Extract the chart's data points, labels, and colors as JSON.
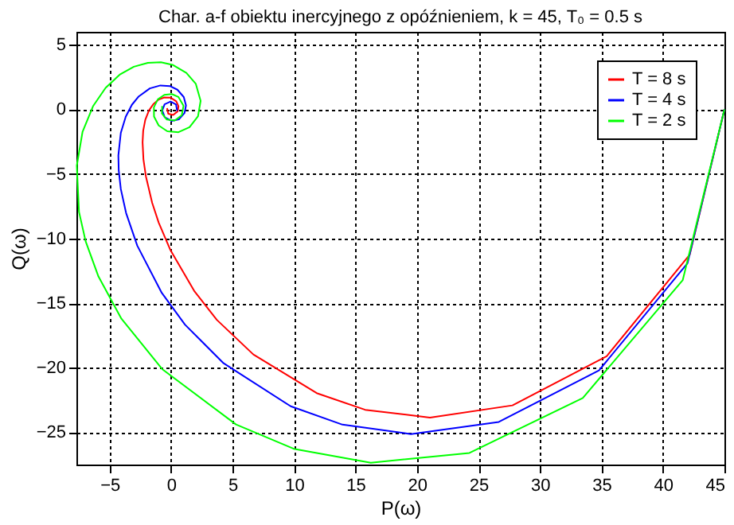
{
  "chart_data": {
    "type": "line",
    "title": "Char. a-f obiektu inercyjnego z opóźnieniem, k = 45, T₀ = 0.5 s",
    "xlabel": "P(ω)",
    "ylabel": "Q(ω)",
    "xlim": [
      -7.7,
      45
    ],
    "ylim": [
      -27.5,
      6
    ],
    "xticks": [
      -5,
      0,
      5,
      10,
      15,
      20,
      25,
      30,
      35,
      40,
      45
    ],
    "yticks": [
      -25,
      -20,
      -15,
      -10,
      -5,
      0,
      5
    ],
    "grid": true,
    "legend": "top right",
    "line_style": "solid",
    "marker": "none",
    "series": [
      {
        "name": "T = 8 s",
        "color": "#ff0000",
        "x": [
          45,
          42.18,
          35.42,
          27.76,
          21.05,
          15.78,
          11.84,
          6.69,
          3.72,
          1.91,
          -0.05,
          -1.01,
          -1.54,
          -2.05,
          -2.25,
          -2.32,
          -2.27,
          -2.1,
          -1.8,
          -1.45,
          -1.0,
          -0.55,
          -0.03,
          0.42,
          0.6,
          0.54,
          0.17,
          -0.23,
          -0.33
        ],
        "values": [
          0,
          -11.25,
          -19.12,
          -22.92,
          -23.86,
          -23.26,
          -21.97,
          -18.98,
          -16.3,
          -14.1,
          -10.91,
          -8.77,
          -7.24,
          -5.19,
          -3.87,
          -2.56,
          -1.66,
          -0.81,
          -0.09,
          0.4,
          0.76,
          0.92,
          0.9,
          0.62,
          0.23,
          -0.15,
          -0.44,
          -0.34,
          0.09
        ]
      },
      {
        "name": "T = 4 s",
        "color": "#0000ff",
        "x": [
          45,
          42.0,
          34.8,
          26.65,
          19.5,
          13.94,
          9.73,
          4.27,
          1.13,
          -0.76,
          -2.75,
          -3.66,
          -4.09,
          -4.26,
          -4.29,
          -4.09,
          -3.69,
          -3.19,
          -2.63,
          -1.73,
          -0.87,
          -0.1,
          0.51,
          1.03,
          1.21,
          1.09,
          0.63,
          0.05,
          -0.52,
          -0.72,
          -0.53,
          -0.04,
          0.4,
          0.49
        ],
        "values": [
          0,
          -11.91,
          -20.21,
          -24.2,
          -25.14,
          -24.41,
          -22.99,
          -19.66,
          -16.67,
          -14.21,
          -10.56,
          -8.03,
          -6.17,
          -4.72,
          -3.57,
          -1.82,
          -0.57,
          0.35,
          1.0,
          1.62,
          1.85,
          1.8,
          1.52,
          0.95,
          0.3,
          -0.29,
          -0.78,
          -0.9,
          -0.61,
          -0.09,
          0.39,
          0.6,
          0.38,
          -0.12
        ]
      },
      {
        "name": "T = 2 s",
        "color": "#00ff00",
        "x": [
          45,
          41.61,
          33.48,
          24.26,
          16.24,
          9.97,
          5.28,
          -0.73,
          -4.04,
          -5.91,
          -6.95,
          -7.49,
          -7.67,
          -7.2,
          -6.35,
          -5.33,
          -4.19,
          -3.03,
          -1.89,
          -0.83,
          0.11,
          1.24,
          2.01,
          2.4,
          2.19,
          1.5,
          0.6,
          -0.31,
          -1.01,
          -1.39,
          -1.4,
          -1.08,
          -0.55,
          0.06,
          0.59,
          1.01,
          0.87,
          0.3,
          -0.35,
          -0.75,
          -0.73
        ],
        "values": [
          0,
          -13.22,
          -22.35,
          -26.6,
          -27.36,
          -26.28,
          -24.4,
          -20.11,
          -16.21,
          -12.94,
          -10.22,
          -7.94,
          -4.36,
          -1.73,
          0.24,
          1.66,
          2.68,
          3.3,
          3.6,
          3.65,
          3.45,
          2.82,
          1.97,
          0.66,
          -0.53,
          -1.38,
          -1.77,
          -1.7,
          -1.25,
          -0.56,
          0.16,
          0.77,
          1.12,
          1.18,
          0.96,
          0.28,
          -0.45,
          -0.87,
          -0.79,
          -0.32,
          0.26
        ]
      }
    ]
  }
}
